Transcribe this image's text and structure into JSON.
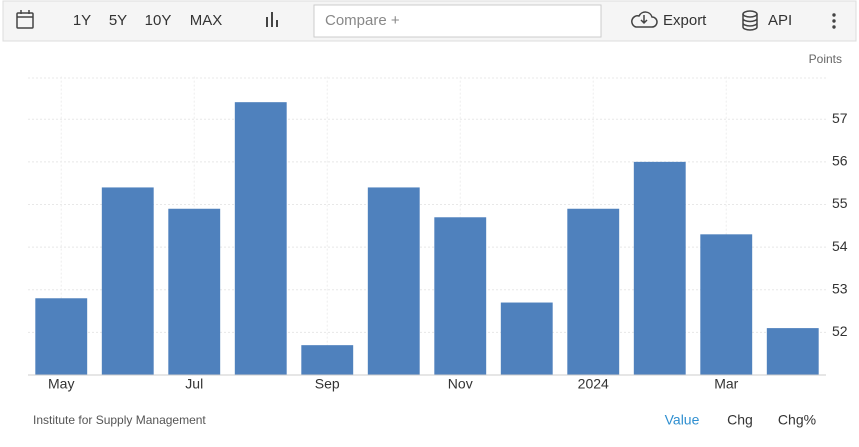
{
  "toolbar": {
    "ranges": [
      "1Y",
      "5Y",
      "10Y",
      "MAX"
    ],
    "compare": "Compare +",
    "export": "Export",
    "api": "API"
  },
  "chart_data": {
    "type": "bar",
    "unit": "Points",
    "categories": [
      "May",
      null,
      "Jul",
      null,
      "Sep",
      null,
      "Nov",
      null,
      "2024",
      null,
      "Mar",
      null
    ],
    "values": [
      52.8,
      55.4,
      54.9,
      57.4,
      51.7,
      55.4,
      54.7,
      52.7,
      54.9,
      56.0,
      54.3,
      52.1
    ],
    "color": "#4f81bd",
    "ylim": [
      51,
      58
    ],
    "yticks": [
      52,
      53,
      54,
      55,
      56,
      57
    ],
    "grid": true
  },
  "footer": {
    "source": "Institute for Supply Management",
    "tabs": [
      "Value",
      "Chg",
      "Chg%"
    ]
  }
}
